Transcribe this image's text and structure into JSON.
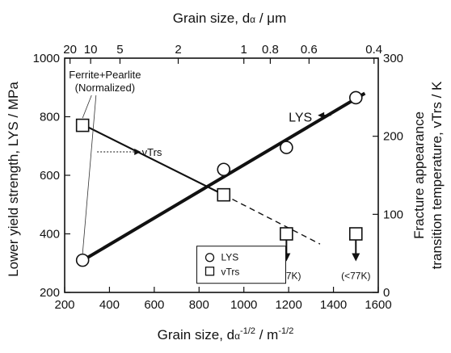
{
  "chart_data": {
    "type": "scatter",
    "title": "",
    "xlabel": "Grain size, dα-1/2 / m-1/2",
    "xlabel_base": "Grain size, d",
    "xlabel_sub": "α",
    "xlabel_sup": "-1/2",
    "xlabel_unit_pre": " / m",
    "xlabel_unit_sup": "-1/2",
    "top_xlabel": "Grain size, dα / μm",
    "top_xlabel_base": "Grain size, d",
    "top_xlabel_sub": "α",
    "top_xlabel_unit": "  / μm",
    "ylabel_left": "Lower yield strength, LYS / MPa",
    "ylabel_right_line1": "Fracture appearance",
    "ylabel_right_line2": "transition temperature, vTrs / K",
    "xlim": [
      200,
      1600
    ],
    "ylim_left": [
      200,
      1000
    ],
    "ylim_right": [
      0,
      300
    ],
    "x_ticks": [
      {
        "v": 200,
        "label": "200"
      },
      {
        "v": 400,
        "label": "400"
      },
      {
        "v": 600,
        "label": "600"
      },
      {
        "v": 800,
        "label": "800"
      },
      {
        "v": 1000,
        "label": "1000"
      },
      {
        "v": 1200,
        "label": "1200"
      },
      {
        "v": 1400,
        "label": "1400"
      },
      {
        "v": 1600,
        "label": "1600"
      }
    ],
    "y_left_ticks": [
      {
        "v": 200,
        "label": "200"
      },
      {
        "v": 400,
        "label": "400"
      },
      {
        "v": 600,
        "label": "600"
      },
      {
        "v": 800,
        "label": "800"
      },
      {
        "v": 1000,
        "label": "1000"
      }
    ],
    "y_right_ticks": [
      {
        "v": 0,
        "label": "0"
      },
      {
        "v": 100,
        "label": "100"
      },
      {
        "v": 200,
        "label": "200"
      },
      {
        "v": 300,
        "label": "300"
      }
    ],
    "top_ticks": [
      {
        "x": 224,
        "label": "20"
      },
      {
        "x": 316,
        "label": "10"
      },
      {
        "x": 447,
        "label": "5"
      },
      {
        "x": 707,
        "label": "2"
      },
      {
        "x": 1000,
        "label": "1"
      },
      {
        "x": 1118,
        "label": "0.8"
      },
      {
        "x": 1291,
        "label": "0.6"
      },
      {
        "x": 1581,
        "label": "0.4"
      }
    ],
    "series": [
      {
        "name": "LYS",
        "axis": "left",
        "marker": "circle",
        "points": [
          {
            "x": 280,
            "y": 310
          },
          {
            "x": 910,
            "y": 620
          },
          {
            "x": 1190,
            "y": 695
          },
          {
            "x": 1500,
            "y": 865
          }
        ],
        "fit": [
          [
            260,
            300
          ],
          [
            1540,
            880
          ]
        ]
      },
      {
        "name": "vTrs",
        "axis": "right",
        "marker": "square",
        "points": [
          {
            "x": 280,
            "y": 214
          },
          {
            "x": 910,
            "y": 125
          },
          {
            "x": 1190,
            "y": 75
          },
          {
            "x": 1500,
            "y": 75
          }
        ],
        "fit_solid": [
          [
            260,
            218
          ],
          [
            910,
            125
          ]
        ],
        "fit_dashed": [
          [
            910,
            125
          ],
          [
            1340,
            62
          ]
        ]
      }
    ],
    "legend": {
      "position": "bottom-center",
      "entries": [
        "LYS",
        "vTrs"
      ]
    },
    "annotations": {
      "ferrite_line1": "Ferrite+Pearlite",
      "ferrite_line2": "(Normalized)",
      "lys_label": "LYS",
      "vtrs_label": "vTrs",
      "lt77_a": "(<77K)",
      "lt77_b": "(<77K)"
    },
    "grid": false
  }
}
